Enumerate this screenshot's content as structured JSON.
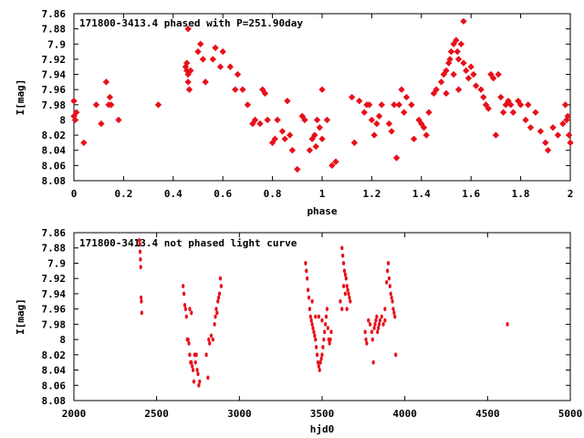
{
  "colors": {
    "points": "#e8101a",
    "axis": "#000000"
  },
  "chart_data": [
    {
      "type": "scatter",
      "title": "171800-3413.4 phased with P=251.90day",
      "xlabel": "phase",
      "ylabel": "I[mag]",
      "xlim": [
        0,
        2
      ],
      "ylim": [
        7.86,
        8.08
      ],
      "y_inverted": true,
      "xticks": [
        "0",
        "0.2",
        "0.4",
        "0.6",
        "0.8",
        "1",
        "1.2",
        "1.4",
        "1.6",
        "1.8",
        "2"
      ],
      "yticks": [
        "7.86",
        "7.88",
        "7.9",
        "7.92",
        "7.94",
        "7.96",
        "7.98",
        "8",
        "8.02",
        "8.04",
        "8.06",
        "8.08"
      ],
      "points": [
        [
          0.0,
          7.995
        ],
        [
          0.005,
          8.0
        ],
        [
          0.01,
          7.99
        ],
        [
          0.0,
          7.975
        ],
        [
          0.04,
          8.03
        ],
        [
          0.09,
          7.98
        ],
        [
          0.11,
          8.005
        ],
        [
          0.13,
          7.95
        ],
        [
          0.14,
          7.98
        ],
        [
          0.145,
          7.97
        ],
        [
          0.15,
          7.98
        ],
        [
          0.18,
          8.0
        ],
        [
          0.34,
          7.98
        ],
        [
          0.45,
          7.93
        ],
        [
          0.455,
          7.935
        ],
        [
          0.46,
          7.94
        ],
        [
          0.455,
          7.925
        ],
        [
          0.46,
          7.95
        ],
        [
          0.465,
          7.96
        ],
        [
          0.46,
          7.88
        ],
        [
          0.47,
          7.935
        ],
        [
          0.5,
          7.91
        ],
        [
          0.51,
          7.9
        ],
        [
          0.52,
          7.92
        ],
        [
          0.53,
          7.95
        ],
        [
          0.56,
          7.92
        ],
        [
          0.57,
          7.905
        ],
        [
          0.59,
          7.93
        ],
        [
          0.6,
          7.91
        ],
        [
          0.63,
          7.93
        ],
        [
          0.65,
          7.96
        ],
        [
          0.66,
          7.94
        ],
        [
          0.68,
          7.96
        ],
        [
          0.7,
          7.98
        ],
        [
          0.72,
          8.005
        ],
        [
          0.73,
          8.0
        ],
        [
          0.75,
          8.005
        ],
        [
          0.76,
          7.96
        ],
        [
          0.77,
          7.965
        ],
        [
          0.78,
          8.0
        ],
        [
          0.8,
          8.03
        ],
        [
          0.81,
          8.025
        ],
        [
          0.82,
          8.0
        ],
        [
          0.84,
          8.015
        ],
        [
          0.85,
          8.025
        ],
        [
          0.87,
          8.02
        ],
        [
          0.88,
          8.04
        ],
        [
          0.86,
          7.975
        ],
        [
          0.9,
          8.065
        ],
        [
          0.92,
          7.995
        ],
        [
          0.93,
          8.0
        ],
        [
          0.95,
          8.04
        ],
        [
          0.96,
          8.025
        ],
        [
          0.97,
          8.02
        ],
        [
          0.975,
          8.035
        ],
        [
          0.98,
          8.0
        ],
        [
          0.99,
          8.01
        ],
        [
          1.0,
          8.025
        ],
        [
          1.02,
          8.0
        ],
        [
          1.04,
          8.06
        ],
        [
          1.055,
          8.055
        ],
        [
          1.0,
          7.96
        ],
        [
          1.12,
          7.97
        ],
        [
          1.13,
          8.03
        ],
        [
          1.15,
          7.975
        ],
        [
          1.17,
          7.99
        ],
        [
          1.18,
          7.98
        ],
        [
          1.19,
          7.98
        ],
        [
          1.2,
          8.0
        ],
        [
          1.21,
          8.02
        ],
        [
          1.22,
          8.005
        ],
        [
          1.23,
          7.995
        ],
        [
          1.24,
          7.98
        ],
        [
          1.27,
          8.005
        ],
        [
          1.28,
          8.015
        ],
        [
          1.29,
          7.98
        ],
        [
          1.3,
          8.05
        ],
        [
          1.31,
          7.98
        ],
        [
          1.32,
          7.96
        ],
        [
          1.33,
          7.99
        ],
        [
          1.34,
          7.97
        ],
        [
          1.36,
          7.98
        ],
        [
          1.37,
          8.025
        ],
        [
          1.39,
          8.0
        ],
        [
          1.4,
          8.005
        ],
        [
          1.41,
          8.01
        ],
        [
          1.42,
          8.02
        ],
        [
          1.43,
          7.99
        ],
        [
          1.45,
          7.965
        ],
        [
          1.46,
          7.96
        ],
        [
          1.48,
          7.95
        ],
        [
          1.49,
          7.94
        ],
        [
          1.5,
          7.935
        ],
        [
          1.51,
          7.925
        ],
        [
          1.515,
          7.92
        ],
        [
          1.52,
          7.91
        ],
        [
          1.53,
          7.9
        ],
        [
          1.54,
          7.895
        ],
        [
          1.545,
          7.91
        ],
        [
          1.55,
          7.92
        ],
        [
          1.56,
          7.9
        ],
        [
          1.57,
          7.925
        ],
        [
          1.57,
          7.87
        ],
        [
          1.58,
          7.935
        ],
        [
          1.59,
          7.945
        ],
        [
          1.6,
          7.93
        ],
        [
          1.61,
          7.94
        ],
        [
          1.53,
          7.94
        ],
        [
          1.55,
          7.96
        ],
        [
          1.5,
          7.965
        ],
        [
          1.62,
          7.955
        ],
        [
          1.64,
          7.96
        ],
        [
          1.65,
          7.97
        ],
        [
          1.66,
          7.98
        ],
        [
          1.67,
          7.985
        ],
        [
          1.68,
          7.94
        ],
        [
          1.69,
          7.945
        ],
        [
          1.7,
          8.02
        ],
        [
          1.71,
          7.94
        ],
        [
          1.72,
          7.97
        ],
        [
          1.73,
          7.99
        ],
        [
          1.74,
          7.98
        ],
        [
          1.75,
          7.975
        ],
        [
          1.76,
          7.98
        ],
        [
          1.77,
          7.99
        ],
        [
          1.79,
          7.975
        ],
        [
          1.8,
          7.98
        ],
        [
          1.82,
          8.0
        ],
        [
          1.83,
          7.98
        ],
        [
          1.84,
          8.01
        ],
        [
          1.86,
          7.99
        ],
        [
          1.88,
          8.015
        ],
        [
          1.9,
          8.03
        ],
        [
          1.91,
          8.04
        ],
        [
          1.93,
          8.01
        ],
        [
          1.95,
          8.02
        ],
        [
          1.97,
          8.005
        ],
        [
          1.98,
          7.98
        ],
        [
          1.99,
          7.995
        ],
        [
          2.0,
          8.03
        ],
        [
          1.995,
          8.02
        ],
        [
          1.985,
          8.0
        ]
      ]
    },
    {
      "type": "scatter",
      "title": "171800-3413.4 not phased light curve",
      "xlabel": "hjd0",
      "ylabel": "I[mag]",
      "xlim": [
        2000,
        5000
      ],
      "ylim": [
        7.86,
        8.08
      ],
      "y_inverted": true,
      "xticks": [
        "2000",
        "2500",
        "3000",
        "3500",
        "4000",
        "4500",
        "5000"
      ],
      "yticks": [
        "7.86",
        "7.88",
        "7.9",
        "7.92",
        "7.94",
        "7.96",
        "7.98",
        "8",
        "8.02",
        "8.04",
        "8.06",
        "8.08"
      ],
      "points": [
        [
          2395,
          7.87
        ],
        [
          2398,
          7.875
        ],
        [
          2400,
          7.885
        ],
        [
          2402,
          7.895
        ],
        [
          2404,
          7.905
        ],
        [
          2406,
          7.945
        ],
        [
          2408,
          7.95
        ],
        [
          2410,
          7.965
        ],
        [
          2660,
          7.93
        ],
        [
          2665,
          7.94
        ],
        [
          2670,
          7.955
        ],
        [
          2675,
          7.96
        ],
        [
          2680,
          7.97
        ],
        [
          2685,
          8.0
        ],
        [
          2690,
          8.0
        ],
        [
          2695,
          8.005
        ],
        [
          2700,
          8.02
        ],
        [
          2705,
          8.03
        ],
        [
          2710,
          8.03
        ],
        [
          2715,
          8.035
        ],
        [
          2720,
          8.04
        ],
        [
          2725,
          8.055
        ],
        [
          2730,
          8.02
        ],
        [
          2735,
          8.03
        ],
        [
          2740,
          8.02
        ],
        [
          2745,
          8.04
        ],
        [
          2750,
          8.045
        ],
        [
          2755,
          8.06
        ],
        [
          2760,
          8.055
        ],
        [
          2700,
          7.96
        ],
        [
          2710,
          7.965
        ],
        [
          2800,
          8.02
        ],
        [
          2810,
          8.05
        ],
        [
          2815,
          8.0
        ],
        [
          2820,
          8.005
        ],
        [
          2830,
          7.995
        ],
        [
          2840,
          8.0
        ],
        [
          2850,
          7.98
        ],
        [
          2855,
          7.97
        ],
        [
          2860,
          7.96
        ],
        [
          2865,
          7.965
        ],
        [
          2870,
          7.95
        ],
        [
          2875,
          7.945
        ],
        [
          2880,
          7.94
        ],
        [
          2885,
          7.92
        ],
        [
          2890,
          7.93
        ],
        [
          3400,
          7.9
        ],
        [
          3405,
          7.91
        ],
        [
          3410,
          7.92
        ],
        [
          3415,
          7.935
        ],
        [
          3420,
          7.945
        ],
        [
          3425,
          7.96
        ],
        [
          3430,
          7.97
        ],
        [
          3435,
          7.975
        ],
        [
          3440,
          7.98
        ],
        [
          3445,
          7.985
        ],
        [
          3450,
          7.99
        ],
        [
          3455,
          7.995
        ],
        [
          3460,
          8.0
        ],
        [
          3465,
          8.01
        ],
        [
          3470,
          8.02
        ],
        [
          3475,
          8.03
        ],
        [
          3480,
          8.035
        ],
        [
          3485,
          8.04
        ],
        [
          3490,
          8.03
        ],
        [
          3495,
          8.025
        ],
        [
          3500,
          8.02
        ],
        [
          3505,
          8.01
        ],
        [
          3510,
          8.0
        ],
        [
          3515,
          7.99
        ],
        [
          3520,
          7.98
        ],
        [
          3525,
          7.97
        ],
        [
          3530,
          7.96
        ],
        [
          3535,
          7.985
        ],
        [
          3540,
          8.0
        ],
        [
          3545,
          8.005
        ],
        [
          3550,
          8.0
        ],
        [
          3555,
          7.99
        ],
        [
          3440,
          7.95
        ],
        [
          3460,
          7.97
        ],
        [
          3480,
          7.97
        ],
        [
          3500,
          7.975
        ],
        [
          3620,
          7.88
        ],
        [
          3625,
          7.89
        ],
        [
          3630,
          7.9
        ],
        [
          3635,
          7.91
        ],
        [
          3640,
          7.915
        ],
        [
          3645,
          7.92
        ],
        [
          3650,
          7.93
        ],
        [
          3655,
          7.935
        ],
        [
          3660,
          7.94
        ],
        [
          3665,
          7.945
        ],
        [
          3670,
          7.95
        ],
        [
          3630,
          7.93
        ],
        [
          3640,
          7.94
        ],
        [
          3650,
          7.96
        ],
        [
          3610,
          7.95
        ],
        [
          3620,
          7.96
        ],
        [
          3760,
          7.99
        ],
        [
          3765,
          8.0
        ],
        [
          3770,
          8.005
        ],
        [
          3780,
          7.975
        ],
        [
          3790,
          7.98
        ],
        [
          3800,
          7.99
        ],
        [
          3805,
          8.0
        ],
        [
          3810,
          8.03
        ],
        [
          3815,
          7.985
        ],
        [
          3820,
          7.98
        ],
        [
          3825,
          7.975
        ],
        [
          3830,
          7.97
        ],
        [
          3835,
          7.99
        ],
        [
          3840,
          7.985
        ],
        [
          3845,
          7.98
        ],
        [
          3850,
          7.975
        ],
        [
          3860,
          7.97
        ],
        [
          3870,
          7.98
        ],
        [
          3880,
          7.96
        ],
        [
          3890,
          7.925
        ],
        [
          3895,
          7.91
        ],
        [
          3900,
          7.9
        ],
        [
          3905,
          7.92
        ],
        [
          3910,
          7.93
        ],
        [
          3915,
          7.94
        ],
        [
          3920,
          7.945
        ],
        [
          3925,
          7.95
        ],
        [
          3930,
          7.96
        ],
        [
          3935,
          7.965
        ],
        [
          3940,
          7.97
        ],
        [
          3945,
          8.02
        ],
        [
          3880,
          7.975
        ],
        [
          4620,
          7.98
        ]
      ]
    }
  ]
}
